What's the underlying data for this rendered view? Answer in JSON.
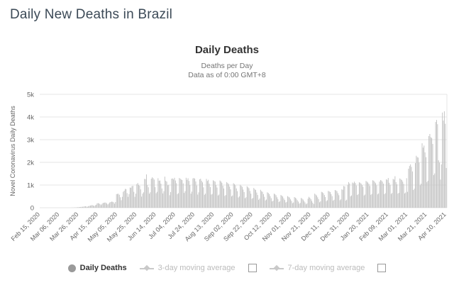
{
  "page": {
    "title": "Daily New Deaths in Brazil"
  },
  "chart": {
    "title": "Daily Deaths",
    "subtitle_line1": "Deaths per Day",
    "subtitle_line2": "Data as of 0:00 GMT+8",
    "y_axis_label": "Novel Coronavirus Daily Deaths"
  },
  "legend": {
    "daily_label": "Daily Deaths",
    "ma3_label": "3-day moving average",
    "ma7_label": "7-day moving average"
  },
  "colors": {
    "bar": "#c3c3c3",
    "grid": "#e6e6e6",
    "axis_text": "#666666",
    "title_text": "#3c4a57",
    "legend_active": "#333333",
    "legend_inactive": "#bcbcbc",
    "legend_marker": "#9a9a9a"
  },
  "chart_data": {
    "type": "bar",
    "title": "Daily Deaths",
    "subtitle": [
      "Deaths per Day",
      "Data as of 0:00 GMT+8"
    ],
    "xlabel": "",
    "ylabel": "Novel Coronavirus Daily Deaths",
    "ylim": [
      0,
      5000
    ],
    "grid": true,
    "legend_position": "bottom",
    "y_ticks": [
      {
        "value": 0,
        "label": "0"
      },
      {
        "value": 1000,
        "label": "1k"
      },
      {
        "value": 2000,
        "label": "2k"
      },
      {
        "value": 3000,
        "label": "3k"
      },
      {
        "value": 4000,
        "label": "4k"
      },
      {
        "value": 5000,
        "label": "5k"
      }
    ],
    "x_tick_every_n_days": 20,
    "x_tick_labels": [
      "Feb 15, 2020",
      "Mar 06, 2020",
      "Mar 26, 2020",
      "Apr 15, 2020",
      "May 05, 2020",
      "May 25, 2020",
      "Jun 14, 2020",
      "Jul 04, 2020",
      "Jul 24, 2020",
      "Aug 13, 2020",
      "Sep 02, 2020",
      "Sep 22, 2020",
      "Oct 12, 2020",
      "Nov 01, 2020",
      "Nov 21, 2020",
      "Dec 11, 2020",
      "Dec 31, 2020",
      "Jan 20, 2021",
      "Feb 09, 2021",
      "Mar 01, 2021",
      "Mar 21, 2021",
      "Apr 10, 2021"
    ],
    "series": [
      {
        "name": "Daily Deaths",
        "values": [
          0,
          0,
          0,
          0,
          0,
          0,
          0,
          0,
          0,
          0,
          0,
          0,
          0,
          0,
          0,
          0,
          0,
          0,
          0,
          0,
          0,
          0,
          0,
          0,
          0,
          0,
          0,
          0,
          0,
          0,
          0,
          1,
          3,
          5,
          7,
          9,
          11,
          15,
          18,
          22,
          25,
          30,
          34,
          39,
          42,
          46,
          58,
          65,
          50,
          40,
          68,
          80,
          95,
          105,
          115,
          99,
          70,
          105,
          130,
          190,
          204,
          188,
          160,
          115,
          165,
          210,
          217,
          230,
          224,
          189,
          140,
          180,
          230,
          250,
          270,
          260,
          240,
          180,
          250,
          600,
          610,
          615,
          570,
          460,
          330,
          480,
          700,
          750,
          830,
          820,
          640,
          480,
          600,
          890,
          880,
          950,
          965,
          700,
          480,
          620,
          1040,
          1090,
          1010,
          970,
          810,
          490,
          620,
          680,
          1270,
          1260,
          1470,
          1000,
          900,
          620,
          680,
          1280,
          1340,
          1300,
          1240,
          910,
          640,
          700,
          1300,
          1190,
          1200,
          1060,
          850,
          630,
          730,
          1370,
          1190,
          1150,
          990,
          1010,
          550,
          690,
          1280,
          1290,
          1250,
          1320,
          1200,
          1080,
          600,
          640,
          1310,
          1280,
          1240,
          1220,
          1070,
          650,
          730,
          1320,
          1230,
          1300,
          1180,
          1000,
          620,
          710,
          1290,
          1310,
          1280,
          1160,
          980,
          580,
          680,
          1250,
          1280,
          1190,
          1120,
          900,
          570,
          620,
          1270,
          1180,
          1230,
          1060,
          910,
          580,
          610,
          1210,
          1180,
          1150,
          1000,
          890,
          540,
          580,
          1200,
          1160,
          1100,
          970,
          850,
          520,
          560,
          1130,
          1090,
          1040,
          930,
          810,
          500,
          540,
          1080,
          1040,
          990,
          850,
          730,
          450,
          500,
          1010,
          970,
          920,
          800,
          690,
          420,
          460,
          950,
          900,
          860,
          740,
          620,
          390,
          430,
          870,
          820,
          780,
          670,
          560,
          350,
          400,
          790,
          730,
          700,
          600,
          480,
          320,
          360,
          680,
          650,
          600,
          510,
          420,
          280,
          310,
          620,
          590,
          550,
          460,
          380,
          250,
          290,
          560,
          530,
          490,
          410,
          340,
          230,
          260,
          510,
          480,
          450,
          370,
          300,
          200,
          230,
          470,
          440,
          400,
          330,
          270,
          180,
          210,
          430,
          400,
          360,
          290,
          230,
          150,
          190,
          400,
          480,
          440,
          380,
          300,
          220,
          160,
          620,
          580,
          540,
          460,
          380,
          240,
          280,
          700,
          680,
          640,
          560,
          470,
          290,
          330,
          740,
          720,
          690,
          600,
          510,
          310,
          350,
          780,
          760,
          730,
          640,
          550,
          330,
          370,
          810,
          790,
          960,
          940,
          310,
          350,
          1010,
          1130,
          1070,
          500,
          540,
          1110,
          1080,
          1150,
          1090,
          980,
          560,
          600,
          1120,
          1100,
          1060,
          1000,
          920,
          540,
          580,
          1180,
          1150,
          1110,
          1050,
          960,
          570,
          610,
          1210,
          1190,
          1140,
          1080,
          990,
          590,
          630,
          1150,
          1220,
          1200,
          1150,
          1060,
          600,
          640,
          1250,
          1230,
          1310,
          1100,
          1010,
          610,
          650,
          1270,
          1240,
          1390,
          1130,
          1030,
          620,
          660,
          1290,
          1260,
          1220,
          1150,
          1050,
          630,
          670,
          1300,
          700,
          1720,
          1840,
          1910,
          1800,
          1600,
          780,
          840,
          1970,
          2290,
          2230,
          2210,
          1990,
          990,
          1060,
          2840,
          2650,
          2740,
          2440,
          2230,
          1130,
          1190,
          3160,
          3250,
          3110,
          3070,
          2810,
          1440,
          1510,
          3780,
          3870,
          3680,
          2090,
          1990,
          1240,
          1910,
          4195,
          3840,
          4250,
          3700,
          1750
        ]
      }
    ]
  }
}
